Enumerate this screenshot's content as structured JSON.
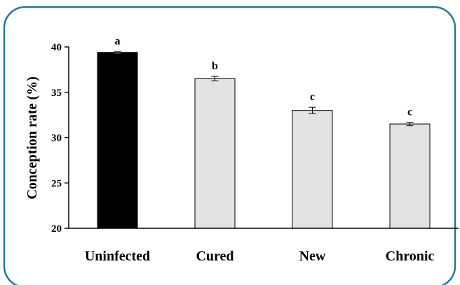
{
  "chart_data": {
    "type": "bar",
    "title": "",
    "xlabel": "",
    "ylabel": "Conception rate (%)",
    "ylim": [
      20,
      40
    ],
    "yticks": [
      20,
      25,
      30,
      35,
      40
    ],
    "ytick_labels": [
      "20",
      "25",
      "30",
      "35",
      "40"
    ],
    "grid": false,
    "categories": [
      "Uninfected",
      "Cured",
      "New",
      "Chronic"
    ],
    "values": [
      39.4,
      36.5,
      33.0,
      31.5
    ],
    "errors": [
      0.1,
      0.25,
      0.35,
      0.2
    ],
    "significance_letters": [
      "a",
      "b",
      "c",
      "c"
    ],
    "bar_colors": [
      "#000000",
      "#e3e3e3",
      "#e3e3e3",
      "#e3e3e3"
    ]
  },
  "colors": {
    "frame_border": "#1f7a96",
    "axis": "#000000",
    "bar_outline": "#000000"
  }
}
